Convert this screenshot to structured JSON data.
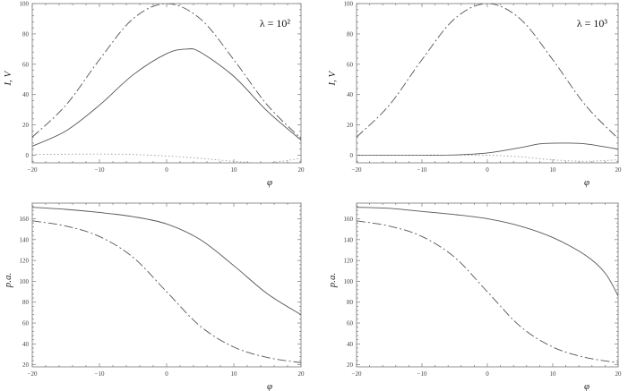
{
  "chart_data": [
    {
      "type": "line",
      "annotation": "λ = 10²",
      "xlabel": "φ",
      "ylabel": "I, V",
      "xlim": [
        -20,
        20
      ],
      "ylim": [
        -5,
        100
      ],
      "xticks": [
        -20,
        -10,
        0,
        10,
        20
      ],
      "yticks": [
        0,
        20,
        40,
        60,
        80,
        100
      ],
      "grid": false,
      "series": [
        {
          "style": "dashed",
          "x": [
            -20,
            -15,
            -10,
            -5,
            0,
            5,
            10,
            15,
            20
          ],
          "y": [
            12,
            33,
            63,
            90,
            100,
            90,
            63,
            33,
            11
          ]
        },
        {
          "style": "solid",
          "x": [
            -20,
            -15,
            -10,
            -5,
            0,
            3,
            5,
            10,
            15,
            20
          ],
          "y": [
            6,
            16,
            33,
            53,
            67,
            70,
            68,
            52,
            29,
            10
          ]
        },
        {
          "style": "dotted",
          "x": [
            -20,
            -15,
            -10,
            -5,
            0,
            5,
            10,
            15,
            20
          ],
          "y": [
            0.5,
            0.7,
            0.8,
            0.5,
            -0.5,
            -2,
            -4,
            -5,
            -2
          ]
        }
      ]
    },
    {
      "type": "line",
      "annotation": "λ = 10³",
      "xlabel": "φ",
      "ylabel": "I, V",
      "xlim": [
        -20,
        20
      ],
      "ylim": [
        -5,
        100
      ],
      "xticks": [
        -20,
        -10,
        0,
        10,
        20
      ],
      "yticks": [
        0,
        20,
        40,
        60,
        80,
        100
      ],
      "grid": false,
      "series": [
        {
          "style": "dashed",
          "x": [
            -20,
            -15,
            -10,
            -5,
            0,
            5,
            10,
            15,
            20
          ],
          "y": [
            12,
            33,
            63,
            90,
            100,
            90,
            63,
            33,
            11
          ]
        },
        {
          "style": "solid",
          "x": [
            -20,
            -10,
            -5,
            0,
            5,
            8,
            11,
            15,
            20
          ],
          "y": [
            0,
            0,
            0.2,
            1.5,
            5,
            7.5,
            8,
            7.5,
            4
          ]
        },
        {
          "style": "dotted",
          "x": [
            -20,
            -10,
            -5,
            0,
            5,
            10,
            15,
            20
          ],
          "y": [
            0,
            0,
            0,
            0,
            -1,
            -3,
            -4,
            -3
          ]
        }
      ]
    },
    {
      "type": "line",
      "annotation": "",
      "xlabel": "φ",
      "ylabel": "p.a.",
      "xlim": [
        -20,
        20
      ],
      "ylim": [
        18,
        175
      ],
      "xticks": [
        -20,
        -10,
        0,
        10,
        20
      ],
      "yticks": [
        20,
        40,
        60,
        80,
        100,
        120,
        140,
        160
      ],
      "grid": false,
      "series": [
        {
          "style": "solid",
          "x": [
            -20,
            -15,
            -10,
            -5,
            0,
            5,
            10,
            15,
            20
          ],
          "y": [
            171,
            169,
            166,
            162,
            155,
            140,
            115,
            88,
            68
          ]
        },
        {
          "style": "dashed",
          "x": [
            -20,
            -15,
            -10,
            -5,
            0,
            5,
            10,
            15,
            20
          ],
          "y": [
            158,
            153,
            143,
            123,
            90,
            57,
            37,
            27,
            22
          ]
        }
      ]
    },
    {
      "type": "line",
      "annotation": "",
      "xlabel": "φ",
      "ylabel": "p.a.",
      "xlim": [
        -20,
        20
      ],
      "ylim": [
        18,
        175
      ],
      "xticks": [
        -20,
        -10,
        0,
        10,
        20
      ],
      "yticks": [
        20,
        40,
        60,
        80,
        100,
        120,
        140,
        160
      ],
      "grid": false,
      "series": [
        {
          "style": "solid",
          "x": [
            -20,
            -15,
            -10,
            -5,
            0,
            5,
            10,
            15,
            18,
            20
          ],
          "y": [
            171,
            170,
            167,
            164,
            160,
            153,
            142,
            125,
            108,
            86
          ]
        },
        {
          "style": "dashed",
          "x": [
            -20,
            -15,
            -10,
            -5,
            0,
            5,
            10,
            15,
            20
          ],
          "y": [
            158,
            153,
            143,
            123,
            90,
            57,
            37,
            27,
            22
          ]
        }
      ]
    }
  ]
}
